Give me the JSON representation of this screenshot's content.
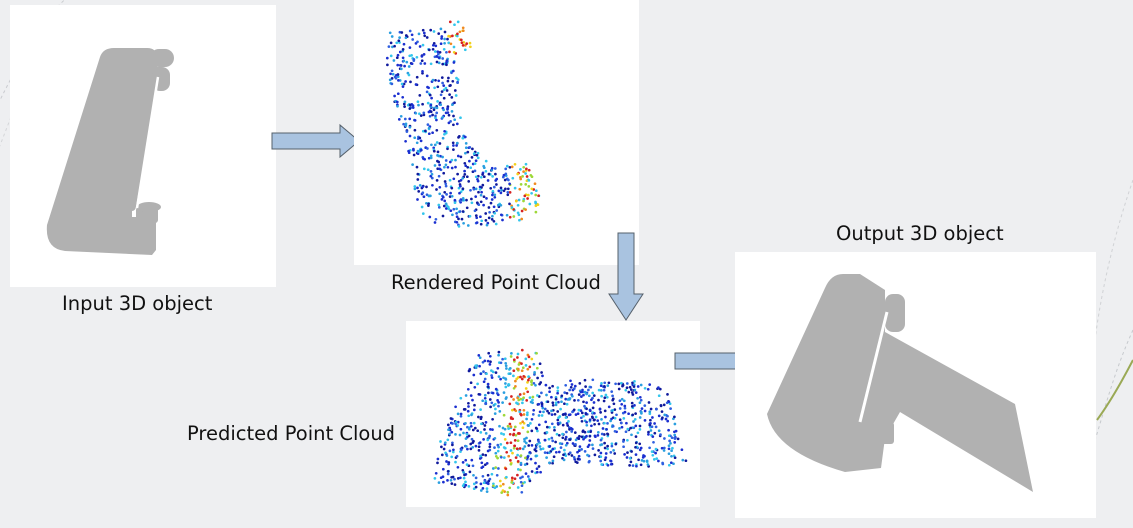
{
  "labels": {
    "input": "Input 3D object",
    "rendered": "Rendered Point Cloud",
    "predicted": "Predicted Point Cloud",
    "output": "Output 3D object"
  },
  "colors": {
    "background": "#eeeff1",
    "panel": "#ffffff",
    "object_gray": "#b1b1b1",
    "arrow_fill": "#a9c3e0",
    "arrow_stroke": "#55606b",
    "point_palette": [
      "#101a9c",
      "#1b2fd0",
      "#2f5fe0",
      "#2a9fe0",
      "#33c6ec",
      "#9ed838",
      "#f2d21c",
      "#f08a20",
      "#d62222"
    ]
  }
}
